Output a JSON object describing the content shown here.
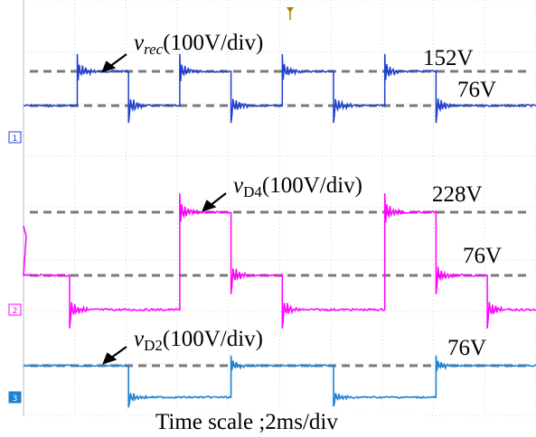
{
  "chart_data": {
    "type": "line",
    "time_scale_label": "Time scale ;2ms/div",
    "grid": true,
    "colors": {
      "ch1": "#1f3fd0",
      "ch2": "#ff00ff",
      "ch3": "#1b82d6",
      "ref_dash": "#7a7a7a",
      "grid": "#cccccc"
    },
    "channels": [
      {
        "id": "ch1",
        "marker": "C1",
        "trace_label_main": "v",
        "trace_label_sub": "rec",
        "trace_label_rest": "(100V/div)",
        "levels_v": [
          76,
          152
        ],
        "level_labels": [
          "152V",
          "76V"
        ],
        "switch_times_div": [
          1.05,
          2.05,
          3.05,
          4.05,
          5.05,
          6.05,
          7.05,
          8.05
        ],
        "first_level_index": 0
      },
      {
        "id": "ch2",
        "marker": "C2",
        "trace_label_main": "v",
        "trace_label_sub": "D4",
        "trace_label_rest": "(100V/div)",
        "levels_v": [
          0,
          76,
          228
        ],
        "level_labels": [
          "228V",
          "76V"
        ],
        "sequence": [
          {
            "t_start_div": 0.0,
            "t_end_div": 0.9,
            "v": 76
          },
          {
            "t_start_div": 0.9,
            "t_end_div": 3.05,
            "v": 0
          },
          {
            "t_start_div": 3.05,
            "t_end_div": 4.05,
            "v": 228
          },
          {
            "t_start_div": 4.05,
            "t_end_div": 5.05,
            "v": 76
          },
          {
            "t_start_div": 5.05,
            "t_end_div": 7.05,
            "v": 0
          },
          {
            "t_start_div": 7.05,
            "t_end_div": 8.05,
            "v": 228
          },
          {
            "t_start_div": 8.05,
            "t_end_div": 9.05,
            "v": 76
          },
          {
            "t_start_div": 9.05,
            "t_end_div": 10.0,
            "v": 0
          }
        ]
      },
      {
        "id": "ch3",
        "marker": "C3",
        "trace_label_main": "v",
        "trace_label_sub": "D2",
        "trace_label_rest": "(100V/div)",
        "levels_v": [
          0,
          76
        ],
        "level_labels": [
          "76V"
        ],
        "sequence": [
          {
            "t_start_div": 0.0,
            "t_end_div": 2.05,
            "v": 76
          },
          {
            "t_start_div": 2.05,
            "t_end_div": 4.05,
            "v": 0
          },
          {
            "t_start_div": 4.05,
            "t_end_div": 6.05,
            "v": 76
          },
          {
            "t_start_div": 6.05,
            "t_end_div": 8.05,
            "v": 0
          },
          {
            "t_start_div": 8.05,
            "t_end_div": 10.0,
            "v": 76
          }
        ]
      }
    ]
  }
}
